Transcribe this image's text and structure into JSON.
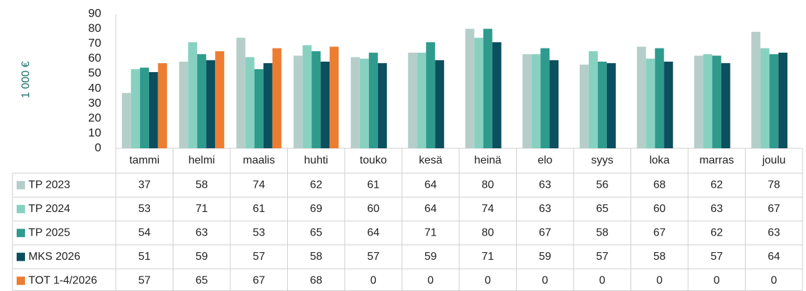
{
  "chart_data": {
    "type": "bar",
    "y_label": "1 000 €",
    "categories": [
      "tammi",
      "helmi",
      "maalis",
      "huhti",
      "touko",
      "kesä",
      "heinä",
      "elo",
      "syys",
      "loka",
      "marras",
      "joulu"
    ],
    "series": [
      {
        "name": "TP 2023",
        "color": "#b5cec9",
        "values": [
          37,
          58,
          74,
          62,
          61,
          64,
          80,
          63,
          56,
          68,
          62,
          78
        ]
      },
      {
        "name": "TP 2024",
        "color": "#88d1c1",
        "values": [
          53,
          71,
          61,
          69,
          60,
          64,
          74,
          63,
          65,
          60,
          63,
          67
        ]
      },
      {
        "name": "TP 2025",
        "color": "#2e9b8d",
        "values": [
          54,
          63,
          53,
          65,
          64,
          71,
          80,
          67,
          58,
          67,
          62,
          63
        ]
      },
      {
        "name": "MKS 2026",
        "color": "#0c4f5f",
        "values": [
          51,
          59,
          57,
          58,
          57,
          59,
          71,
          59,
          57,
          58,
          57,
          64
        ]
      },
      {
        "name": "TOT 1-4/2026",
        "color": "#ed7d31",
        "values": [
          57,
          65,
          67,
          68,
          0,
          0,
          0,
          0,
          0,
          0,
          0,
          0
        ]
      }
    ],
    "ylim": [
      0,
      90
    ],
    "yticks": [
      0,
      10,
      20,
      30,
      40,
      50,
      60,
      70,
      80,
      90
    ],
    "grid": false
  }
}
